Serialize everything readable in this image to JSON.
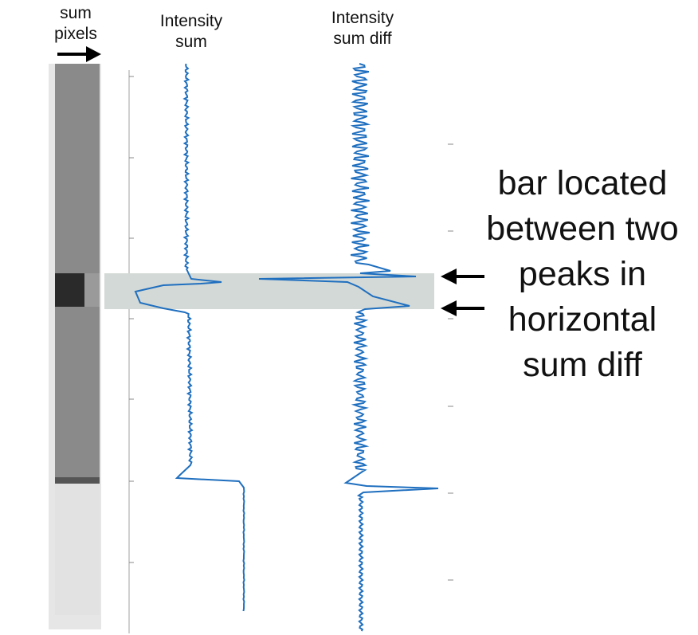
{
  "labels": {
    "sum_pixels_line1": "sum",
    "sum_pixels_line2": "pixels",
    "intensity_sum_line1": "Intensity",
    "intensity_sum_line2": "sum",
    "intensity_diff_line1": "Intensity",
    "intensity_diff_line2": "sum diff"
  },
  "annotation": {
    "line1": "bar located",
    "line2": "between two",
    "line3": "peaks in",
    "line4": "horizontal",
    "line5": "sum diff"
  },
  "colors": {
    "curve": "#1f6fbf",
    "highlight": "#d3d9d6",
    "strip_background": "#8a8a8a",
    "dark_bar": "#2a2a2a",
    "text": "#111111"
  },
  "icons": [
    "right-arrow-icon",
    "left-arrow-icon",
    "left-arrow-icon"
  ]
}
